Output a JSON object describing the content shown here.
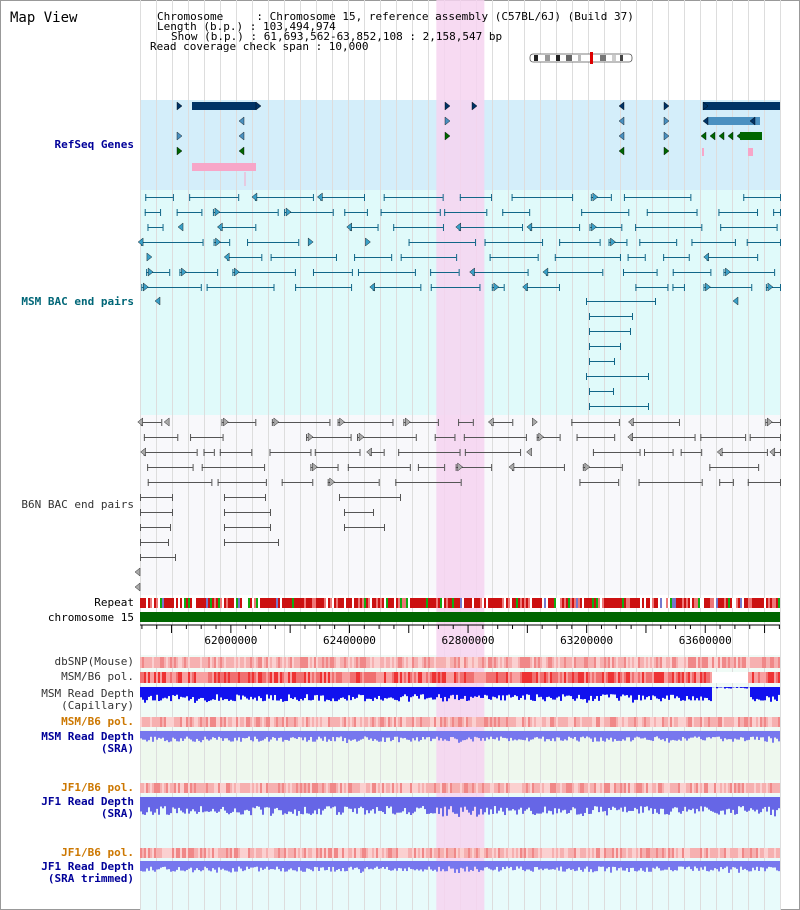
{
  "title": "Map View",
  "info": {
    "chromosome": "Chromosome     : Chromosome 15, reference assembly (C57BL/6J) (Build 37)",
    "length": "Length (b.p.) : 103,494,974",
    "show": "Show (b.p.) : 61,693,562-63,852,108 : 2,158,547 bp",
    "coverage": "Read coverage check span : 10,000"
  },
  "tracks": {
    "refseq": "RefSeq Genes",
    "msm_bac": "MSM BAC end pairs",
    "b6n_bac": "B6N BAC end pairs",
    "repeat": "Repeat",
    "chromosome": "chromosome 15",
    "dbsnp": "dbSNP(Mouse)",
    "msm_pol_1": "MSM/B6 pol.",
    "msm_depth_cap_1": "MSM Read Depth",
    "msm_depth_cap_2": "(Capillary)",
    "msm_pol_2": "MSM/B6 pol.",
    "msm_depth_sra_1": "MSM Read Depth",
    "msm_depth_sra_2": "(SRA)",
    "jf1_pol_1": "JF1/B6 pol.",
    "jf1_depth_sra_1": "JF1 Read Depth",
    "jf1_depth_sra_2": "(SRA)",
    "jf1_pol_2": "JF1/B6 pol.",
    "jf1_trim_1": "JF1 Read Depth",
    "jf1_trim_2": "(SRA trimmed)"
  },
  "axis": {
    "range_bp": [
      61693562,
      63852108
    ],
    "ticks": [
      "62000000",
      "62400000",
      "62800000",
      "63200000",
      "63600000"
    ],
    "tick_values": [
      62000000,
      62400000,
      62800000,
      63200000,
      63600000
    ]
  },
  "highlight_bp": [
    62693000,
    62855000
  ],
  "colors": {
    "refseq_bg": "#d4eefa",
    "bac_bg": "#e0fafa",
    "highlight": "#f6d4f0",
    "gene": "#003366",
    "gene_light": "#4a90c0",
    "gene_green": "#006600",
    "pink_feature": "#f7a6c8",
    "msm_bac": "#116688",
    "b6n_bac": "#555555",
    "chromosome": "#006600",
    "repeat_red": "#cc1111",
    "depth_blue": "#1111ee",
    "depth_light": "#7777ee",
    "label_blue": "#000099",
    "label_teal": "#006677",
    "label_orange": "#cc7700",
    "label_dark": "#222222"
  }
}
